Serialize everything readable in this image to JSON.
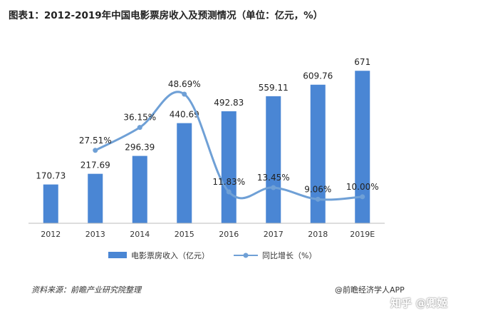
{
  "title": "图表1：2012-2019年中国电影票房收入及预测情况（单位：亿元，%）",
  "source": "资料来源：前瞻产业研究院整理",
  "brand": "@前瞻经济学人APP",
  "watermark": "知乎 @卿姬",
  "chart_data": {
    "type": "bar",
    "title": "图表1：2012-2019年中国电影票房收入及预测情况（单位：亿元，%）",
    "categories": [
      "2012",
      "2013",
      "2014",
      "2015",
      "2016",
      "2017",
      "2018",
      "2019E"
    ],
    "series": [
      {
        "name": "电影票房收入（亿元）",
        "type": "bar",
        "color": "#4a86d4",
        "values": [
          170.73,
          217.69,
          296.39,
          440.69,
          492.83,
          559.11,
          609.76,
          671
        ],
        "labels": [
          "170.73",
          "217.69",
          "296.39",
          "440.69",
          "492.83",
          "559.11",
          "609.76",
          "671"
        ]
      },
      {
        "name": "同比增长（%）",
        "type": "line",
        "color": "#6fa0d6",
        "values": [
          null,
          27.51,
          36.15,
          48.69,
          11.83,
          13.45,
          9.06,
          10.0
        ],
        "labels": [
          "",
          "27.51%",
          "36.15%",
          "48.69%",
          "11.83%",
          "13.45%",
          "9.06%",
          "10.00%"
        ]
      }
    ],
    "bar_ylim": [
      0,
      700
    ],
    "line_ylim": [
      0,
      60
    ],
    "legend_position": "bottom-center",
    "grid": false
  }
}
